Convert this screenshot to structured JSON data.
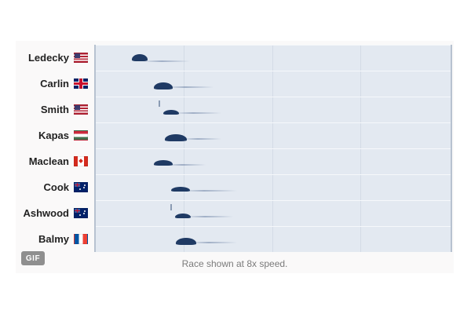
{
  "swimmers": [
    {
      "name": "Ledecky",
      "flag": "usa-flag-icon"
    },
    {
      "name": "Carlin",
      "flag": "gbr-flag-icon"
    },
    {
      "name": "Smith",
      "flag": "usa-flag-icon"
    },
    {
      "name": "Kapas",
      "flag": "hun-flag-icon"
    },
    {
      "name": "Maclean",
      "flag": "can-flag-icon"
    },
    {
      "name": "Cook",
      "flag": "aus-flag-icon"
    },
    {
      "name": "Ashwood",
      "flag": "aus-flag-icon"
    },
    {
      "name": "Balmy",
      "flag": "fra-flag-icon"
    }
  ],
  "caption": "Race shown at 8x speed.",
  "badge": "GIF",
  "colors": {
    "water": "#e3e9f1",
    "swimmer": "#1f3a64",
    "badge": "#8f8f8f"
  }
}
